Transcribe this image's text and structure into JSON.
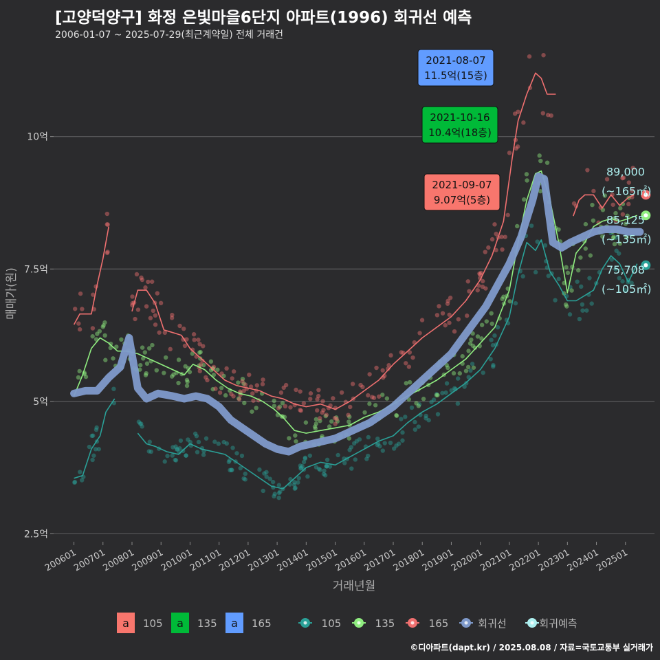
{
  "header": {
    "title": "[고양덕양구] 화정 은빛마을6단지 아파트(1996) 회귀선 예측",
    "subtitle": "2006-01-07 ~ 2025-07-29(최근계약일) 전체 거래건"
  },
  "footer": {
    "credit": "©디아파트(dapt.kr) / 2025.08.08 / 자료=국토교통부 실거래가"
  },
  "colors": {
    "s105": "#2aa198",
    "s135": "#90ee80",
    "s165": "#f07070",
    "regression": "#7f9acb",
    "forecast": "#aef0f0",
    "label105": "#f8766d",
    "label135": "#00ba38",
    "label165": "#619cff"
  },
  "chart_data": {
    "type": "line",
    "xlabel": "거래년월",
    "ylabel": "매매가(원)",
    "x_ticks": [
      "200601",
      "200701",
      "200801",
      "200901",
      "201001",
      "201101",
      "201201",
      "201301",
      "201401",
      "201501",
      "201601",
      "201701",
      "201801",
      "201901",
      "202001",
      "202101",
      "202201",
      "202301",
      "202401",
      "202501"
    ],
    "y_ticks": [
      "2.5억",
      "5억",
      "7.5억",
      "10억"
    ],
    "y_tick_values": [
      25000,
      50000,
      75000,
      100000
    ],
    "ylim": [
      23500,
      118000
    ],
    "xlim": [
      2005.3,
      2026.0
    ],
    "series": [
      {
        "name": "105",
        "key": "s105",
        "x": [
          2006.0,
          2006.3,
          2006.6,
          2006.9,
          2007.1,
          2007.4,
          2007.7,
          2008.2,
          2008.5,
          2008.8,
          2009.2,
          2009.6,
          2010.0,
          2010.4,
          2010.8,
          2011.2,
          2011.6,
          2012.0,
          2012.4,
          2012.8,
          2013.2,
          2013.6,
          2014.0,
          2014.5,
          2015.0,
          2015.5,
          2016.0,
          2016.5,
          2017.0,
          2017.5,
          2018.0,
          2018.5,
          2019.0,
          2019.5,
          2020.0,
          2020.5,
          2021.0,
          2021.3,
          2021.6,
          2021.9,
          2022.1,
          2022.4,
          2022.7,
          2023.0,
          2023.3,
          2023.6,
          2023.9,
          2024.2,
          2024.5,
          2024.8,
          2025.1,
          2025.4
        ],
        "y": [
          35500,
          36000,
          41000,
          43500,
          48000,
          50500,
          null,
          44000,
          42000,
          41500,
          40500,
          40000,
          42000,
          41000,
          40500,
          40000,
          38500,
          37000,
          35500,
          34000,
          33500,
          35500,
          37500,
          38500,
          38000,
          39500,
          41000,
          42500,
          43500,
          46000,
          48000,
          49500,
          51500,
          53500,
          56000,
          60000,
          66000,
          74000,
          80000,
          78500,
          80500,
          74500,
          72000,
          69000,
          69000,
          70000,
          71000,
          75000,
          77500,
          76000,
          72500,
          76000
        ]
      },
      {
        "name": "135",
        "key": "s135",
        "x": [
          2006.0,
          2006.3,
          2006.6,
          2006.9,
          2007.2,
          2007.5,
          2007.8,
          2008.2,
          2008.6,
          2009.0,
          2009.4,
          2009.8,
          2010.1,
          2010.5,
          2010.9,
          2011.3,
          2011.7,
          2012.1,
          2012.5,
          2012.9,
          2013.2,
          2013.6,
          2014.0,
          2014.5,
          2015.0,
          2015.5,
          2016.0,
          2016.5,
          2017.0,
          2017.5,
          2018.0,
          2018.5,
          2019.0,
          2019.5,
          2020.0,
          2020.5,
          2021.0,
          2021.3,
          2021.6,
          2021.9,
          2022.1,
          2022.4,
          2022.7,
          2023.0,
          2023.3,
          2023.6,
          2023.9,
          2024.2,
          2024.5,
          2024.8,
          2025.1,
          2025.4
        ],
        "y": [
          51000,
          55000,
          60000,
          62000,
          61000,
          59500,
          59500,
          59000,
          58000,
          57000,
          56000,
          55000,
          57000,
          56000,
          54000,
          52500,
          51500,
          51000,
          50000,
          48500,
          47000,
          44500,
          44000,
          44500,
          45000,
          45500,
          47000,
          48000,
          49500,
          51000,
          52500,
          54000,
          56000,
          58000,
          61000,
          64000,
          71000,
          80000,
          88000,
          93000,
          93500,
          88000,
          80000,
          70500,
          78000,
          80000,
          83000,
          84000,
          84500,
          84000,
          84500,
          85125
        ]
      },
      {
        "name": "165",
        "key": "s165",
        "x": [
          2006.0,
          2006.2,
          2006.4,
          2006.6,
          2006.8,
          2007.0,
          2007.2,
          2007.4,
          2007.6,
          null,
          2008.0,
          2008.2,
          2008.5,
          2008.8,
          2009.1,
          2009.4,
          2009.7,
          2010.0,
          2010.4,
          2010.8,
          2011.2,
          2011.6,
          2012.0,
          2012.4,
          2012.8,
          2013.2,
          2013.6,
          2014.0,
          2014.5,
          2015.0,
          2015.5,
          2016.0,
          2016.5,
          2017.0,
          2017.5,
          2018.0,
          2018.5,
          2019.0,
          2019.5,
          2020.0,
          2020.4,
          2020.8,
          2021.1,
          2021.3,
          2021.6,
          2021.9,
          2022.1,
          2022.3,
          2022.6,
          2022.9,
          2023.2,
          2023.4,
          2023.6,
          2023.9,
          2024.2,
          2024.5,
          2024.8,
          2025.1,
          2025.3
        ],
        "y": [
          64500,
          66500,
          66500,
          66500,
          72000,
          77000,
          83000,
          null,
          null,
          null,
          67000,
          71000,
          71000,
          68500,
          63500,
          63000,
          62500,
          60000,
          58000,
          56000,
          54000,
          53000,
          52500,
          52000,
          51000,
          50500,
          49500,
          49000,
          49500,
          48500,
          50000,
          52000,
          54000,
          57000,
          59500,
          62000,
          64000,
          66000,
          69000,
          73000,
          77500,
          84000,
          96000,
          103000,
          108000,
          112000,
          111000,
          108000,
          108000,
          null,
          85000,
          88000,
          89000,
          89000,
          86500,
          89000,
          87000,
          88500,
          89000
        ]
      },
      {
        "name": "회귀선",
        "key": "regression",
        "x": [
          2006.0,
          2006.4,
          2006.8,
          2007.2,
          2007.6,
          2007.9,
          2008.2,
          2008.5,
          2008.9,
          2009.4,
          2009.8,
          2010.2,
          2010.6,
          2011.0,
          2011.4,
          2011.8,
          2012.2,
          2012.6,
          2013.0,
          2013.4,
          2013.8,
          2014.2,
          2014.6,
          2015.0,
          2015.4,
          2015.8,
          2016.2,
          2016.6,
          2017.0,
          2017.4,
          2017.8,
          2018.2,
          2018.6,
          2019.0,
          2019.4,
          2019.8,
          2020.2,
          2020.6,
          2021.0,
          2021.4,
          2021.8,
          2022.0,
          2022.2,
          2022.5,
          2022.8,
          2023.1,
          2023.5,
          2023.9,
          2024.3,
          2024.7,
          2025.1,
          2025.5
        ],
        "y": [
          51500,
          52000,
          52000,
          54500,
          56500,
          62000,
          52500,
          50500,
          51500,
          51000,
          50500,
          51000,
          50500,
          49000,
          46500,
          45000,
          43500,
          42000,
          41000,
          40500,
          41500,
          42000,
          42500,
          43000,
          44000,
          45000,
          46000,
          47500,
          49000,
          51000,
          53000,
          55000,
          57000,
          59000,
          62000,
          65000,
          68000,
          72000,
          76000,
          81000,
          88000,
          92500,
          92000,
          80000,
          79000,
          80000,
          81000,
          82000,
          82500,
          82500,
          82000,
          82000
        ]
      }
    ],
    "forecast": [
      {
        "name": "165",
        "value": 89000,
        "value_label": "89,000",
        "area_label": "(~165㎡)",
        "x": 2025.7
      },
      {
        "name": "135",
        "value": 85125,
        "value_label": "85,125",
        "area_label": "(~135㎡)",
        "x": 2025.7
      },
      {
        "name": "105",
        "value": 75708,
        "value_label": "75,708",
        "area_label": "(~105㎡)",
        "x": 2025.7
      }
    ],
    "callouts": [
      {
        "date": "2021-08-07",
        "value": "11.5억(15층)",
        "area": "165",
        "x": 2021.6,
        "y": 115000
      },
      {
        "date": "2021-10-16",
        "value": "10.4억(18층)",
        "area": "135",
        "x": 2021.8,
        "y": 104000
      },
      {
        "date": "2021-09-07",
        "value": "9.07억(5층)",
        "area": "105",
        "x": 2021.7,
        "y": 90700
      }
    ],
    "legend_labels": [
      {
        "letter": "a",
        "text": "105"
      },
      {
        "letter": "a",
        "text": "135"
      },
      {
        "letter": "a",
        "text": "165"
      }
    ],
    "legend_series": [
      {
        "text": "105"
      },
      {
        "text": "135"
      },
      {
        "text": "165"
      },
      {
        "text": "회귀선"
      },
      {
        "text": "회귀예측"
      }
    ],
    "legend_placement": "bottom",
    "grid": true
  }
}
